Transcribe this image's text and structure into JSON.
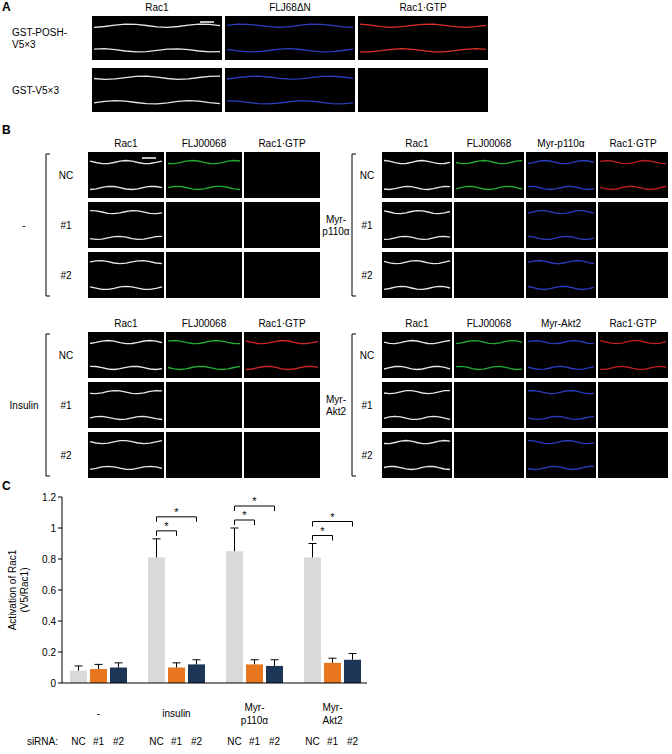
{
  "panels": {
    "A": {
      "label": "A",
      "columns": [
        "Rac1",
        "FLJ68ΔN",
        "Rac1·GTP"
      ],
      "rows": [
        {
          "label": [
            "GST-POSH-",
            "V5×3"
          ],
          "signals": [
            "#e6e6e6",
            "#2b3fbf",
            "#e0302a"
          ]
        },
        {
          "label": [
            "GST-V5×3"
          ],
          "signals": [
            "#e6e6e6",
            "#2b3fbf",
            null
          ]
        }
      ]
    },
    "B": {
      "label": "B",
      "groups": [
        {
          "condition": [
            "-"
          ],
          "columns": [
            "Rac1",
            "FLJ00068",
            "Rac1·GTP"
          ],
          "rows": [
            {
              "label": "NC",
              "signals": [
                "#e6e6e6",
                "#22aa33",
                null
              ]
            },
            {
              "label": "#1",
              "signals": [
                "#e6e6e6",
                null,
                null
              ]
            },
            {
              "label": "#2",
              "signals": [
                "#e6e6e6",
                null,
                null
              ]
            }
          ]
        },
        {
          "condition": [
            "Insulin"
          ],
          "columns": [
            "Rac1",
            "FLJ00068",
            "Rac1·GTP"
          ],
          "rows": [
            {
              "label": "NC",
              "signals": [
                "#e6e6e6",
                "#22aa33",
                "#d02525"
              ]
            },
            {
              "label": "#1",
              "signals": [
                "#e6e6e6",
                null,
                null
              ]
            },
            {
              "label": "#2",
              "signals": [
                "#e6e6e6",
                null,
                null
              ]
            }
          ]
        },
        {
          "condition": [
            "Myr-",
            "p110α"
          ],
          "columns": [
            "Rac1",
            "FLJ00068",
            "Myr-p110α",
            "Rac1·GTP"
          ],
          "rows": [
            {
              "label": "NC",
              "signals": [
                "#e6e6e6",
                "#22aa33",
                "#2a3cc0",
                "#c02020"
              ]
            },
            {
              "label": "#1",
              "signals": [
                "#e6e6e6",
                null,
                "#2a3cc0",
                null
              ]
            },
            {
              "label": "#2",
              "signals": [
                "#e6e6e6",
                null,
                "#2a3cc0",
                null
              ]
            }
          ]
        },
        {
          "condition": [
            "Myr-",
            "Akt2"
          ],
          "columns": [
            "Rac1",
            "FLJ00068",
            "Myr-Akt2",
            "Rac1·GTP"
          ],
          "rows": [
            {
              "label": "NC",
              "signals": [
                "#e6e6e6",
                "#22aa33",
                "#2a3cc0",
                "#c02020"
              ]
            },
            {
              "label": "#1",
              "signals": [
                "#e6e6e6",
                null,
                "#2a3cc0",
                null
              ]
            },
            {
              "label": "#2",
              "signals": [
                "#e6e6e6",
                null,
                "#2a3cc0",
                null
              ]
            }
          ]
        }
      ]
    }
  },
  "chart_data": {
    "type": "bar",
    "panel_label": "C",
    "ylabel": [
      "Activation of Rac1",
      "(V5/Rac1)"
    ],
    "xlabel": "siRNA:",
    "categories": [
      "NC",
      "#1",
      "#2",
      "NC",
      "#1",
      "#2",
      "NC",
      "#1",
      "#2",
      "NC",
      "#1",
      "#2"
    ],
    "values": [
      0.08,
      0.09,
      0.1,
      0.81,
      0.1,
      0.12,
      0.85,
      0.12,
      0.11,
      0.81,
      0.13,
      0.15
    ],
    "errors": [
      0.03,
      0.03,
      0.03,
      0.12,
      0.03,
      0.03,
      0.15,
      0.03,
      0.04,
      0.09,
      0.03,
      0.04
    ],
    "colors": [
      "#d9d9d9",
      "#e8761e",
      "#1d3557",
      "#d9d9d9",
      "#e8761e",
      "#1d3557",
      "#d9d9d9",
      "#e8761e",
      "#1d3557",
      "#d9d9d9",
      "#e8761e",
      "#1d3557"
    ],
    "groups": [
      {
        "label": [
          "-"
        ]
      },
      {
        "label": [
          "insulin"
        ]
      },
      {
        "label": [
          "Myr-",
          "p110α"
        ]
      },
      {
        "label": [
          "Myr-",
          "Akt2"
        ]
      }
    ],
    "significance": [
      {
        "from": 3,
        "to": 4,
        "label": "*"
      },
      {
        "from": 3,
        "to": 5,
        "label": "*"
      },
      {
        "from": 6,
        "to": 7,
        "label": "*"
      },
      {
        "from": 6,
        "to": 8,
        "label": "*"
      },
      {
        "from": 9,
        "to": 10,
        "label": "*"
      },
      {
        "from": 9,
        "to": 11,
        "label": "*"
      }
    ],
    "ylim": [
      0,
      1.2
    ],
    "yticks": [
      0,
      0.2,
      0.4,
      0.6,
      0.8,
      1,
      1.2
    ]
  }
}
